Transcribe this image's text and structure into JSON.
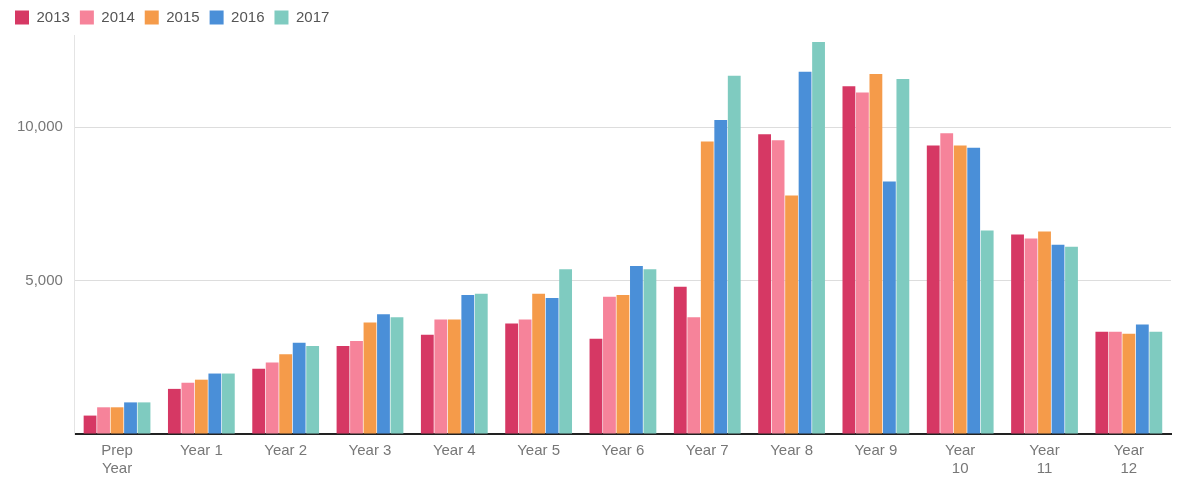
{
  "chart_data": {
    "type": "bar",
    "categories": [
      "Prep Year",
      "Year 1",
      "Year 2",
      "Year 3",
      "Year 4",
      "Year 5",
      "Year 6",
      "Year 7",
      "Year 8",
      "Year 9",
      "Year 10",
      "Year 11",
      "Year 12"
    ],
    "series": [
      {
        "name": "2013",
        "color": "#d63864",
        "values": [
          600,
          1470,
          2130,
          2870,
          3230,
          3600,
          3100,
          4800,
          9770,
          11330,
          9400,
          6500,
          3330
        ]
      },
      {
        "name": "2014",
        "color": "#f6839a",
        "values": [
          870,
          1670,
          2330,
          3030,
          3730,
          3730,
          4470,
          3800,
          9570,
          11130,
          9800,
          6370,
          3330
        ]
      },
      {
        "name": "2015",
        "color": "#f59b4a",
        "values": [
          870,
          1770,
          2600,
          3630,
          3730,
          4570,
          4530,
          9530,
          7770,
          11730,
          9400,
          6600,
          3270
        ]
      },
      {
        "name": "2016",
        "color": "#4a8fd8",
        "values": [
          1030,
          1970,
          2970,
          3900,
          4530,
          4430,
          5470,
          10230,
          11800,
          8230,
          9330,
          6170,
          3570
        ]
      },
      {
        "name": "2017",
        "color": "#7fcbc0",
        "values": [
          1030,
          1970,
          2870,
          3800,
          4570,
          5370,
          5370,
          11670,
          12770,
          11570,
          6630,
          6100,
          3330
        ]
      }
    ],
    "ylim": [
      0,
      13000
    ],
    "yticks": [
      {
        "value": 0,
        "label": null
      },
      {
        "value": 5000,
        "label": "5,000"
      },
      {
        "value": 10000,
        "label": "10,000"
      }
    ],
    "grid": "y",
    "legend": "top left"
  }
}
